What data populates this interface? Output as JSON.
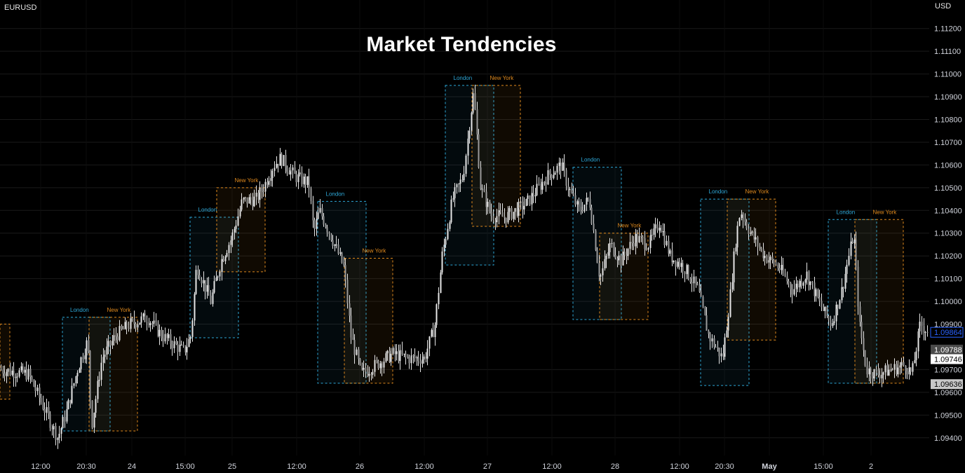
{
  "header": {
    "symbol": "EURUSD",
    "currency": "USD"
  },
  "title": "Market Tendencies",
  "colors": {
    "background": "#000000",
    "candle": "#e6e6e6",
    "london": "#2ea8d8",
    "new_york": "#e08a1e",
    "grid": "#1a1a1a",
    "axis_text": "#d1d4dc",
    "last_price": "#2962ff"
  },
  "chart_data": {
    "type": "candlestick",
    "title": "Market Tendencies",
    "symbol": "EURUSD",
    "y_axis_unit": "USD",
    "ylim": [
      1.0935,
      1.1133
    ],
    "y_ticks": [
      "1.11200",
      "1.11100",
      "1.11000",
      "1.10900",
      "1.10800",
      "1.10700",
      "1.10600",
      "1.10500",
      "1.10400",
      "1.10300",
      "1.10200",
      "1.10100",
      "1.10000",
      "1.09900",
      "1.09700",
      "1.09600",
      "1.09500",
      "1.09400"
    ],
    "x_ticks": [
      "12:00",
      "20:30",
      "24",
      "15:00",
      "25",
      "12:00",
      "26",
      "12:00",
      "27",
      "12:00",
      "28",
      "12:00",
      "20:30",
      "May",
      "15:00",
      "2"
    ],
    "price_labels": [
      {
        "value": "1.09864",
        "style": "last"
      },
      {
        "value": "1.09788",
        "style": "dark"
      },
      {
        "value": "1.09746",
        "style": "white"
      },
      {
        "value": "1.09636",
        "style": "light"
      }
    ],
    "grid": true,
    "price_path": [
      [
        0,
        1.097
      ],
      [
        40,
        1.0968
      ],
      [
        82,
        1.094
      ],
      [
        95,
        1.0952
      ],
      [
        110,
        1.097
      ],
      [
        125,
        1.0983
      ],
      [
        130,
        1.0945
      ],
      [
        145,
        1.0975
      ],
      [
        165,
        1.0985
      ],
      [
        185,
        1.099
      ],
      [
        210,
        1.0993
      ],
      [
        230,
        1.0985
      ],
      [
        262,
        1.0978
      ],
      [
        272,
        1.0985
      ],
      [
        280,
        1.1016
      ],
      [
        300,
        1.1
      ],
      [
        315,
        1.1018
      ],
      [
        330,
        1.1028
      ],
      [
        345,
        1.1044
      ],
      [
        365,
        1.1045
      ],
      [
        375,
        1.105
      ],
      [
        390,
        1.106
      ],
      [
        400,
        1.1063
      ],
      [
        420,
        1.1055
      ],
      [
        440,
        1.1052
      ],
      [
        447,
        1.103
      ],
      [
        455,
        1.104
      ],
      [
        470,
        1.103
      ],
      [
        490,
        1.1015
      ],
      [
        500,
        1.0985
      ],
      [
        515,
        1.0968
      ],
      [
        540,
        1.0973
      ],
      [
        560,
        1.0977
      ],
      [
        580,
        1.0975
      ],
      [
        605,
        1.0975
      ],
      [
        620,
        1.099
      ],
      [
        630,
        1.102
      ],
      [
        645,
        1.1045
      ],
      [
        660,
        1.1055
      ],
      [
        672,
        1.1085
      ],
      [
        675,
        1.1092
      ],
      [
        685,
        1.105
      ],
      [
        700,
        1.1038
      ],
      [
        720,
        1.1037
      ],
      [
        750,
        1.1043
      ],
      [
        780,
        1.1055
      ],
      [
        800,
        1.106
      ],
      [
        810,
        1.105
      ],
      [
        825,
        1.104
      ],
      [
        840,
        1.1045
      ],
      [
        855,
        1.101
      ],
      [
        870,
        1.1025
      ],
      [
        885,
        1.1018
      ],
      [
        905,
        1.1028
      ],
      [
        925,
        1.1025
      ],
      [
        940,
        1.1035
      ],
      [
        955,
        1.102
      ],
      [
        975,
        1.1015
      ],
      [
        995,
        1.1005
      ],
      [
        1010,
        1.0985
      ],
      [
        1030,
        1.0975
      ],
      [
        1040,
        1.1
      ],
      [
        1048,
        1.1025
      ],
      [
        1055,
        1.104
      ],
      [
        1070,
        1.103
      ],
      [
        1090,
        1.102
      ],
      [
        1110,
        1.1015
      ],
      [
        1130,
        1.1005
      ],
      [
        1150,
        1.1012
      ],
      [
        1170,
        1.0998
      ],
      [
        1185,
        1.099
      ],
      [
        1200,
        1.1005
      ],
      [
        1210,
        1.102
      ],
      [
        1217,
        1.103
      ],
      [
        1225,
        1.099
      ],
      [
        1235,
        1.097
      ],
      [
        1250,
        1.0968
      ],
      [
        1270,
        1.097
      ],
      [
        1290,
        1.0972
      ],
      [
        1300,
        1.0968
      ],
      [
        1312,
        1.099
      ],
      [
        1325,
        1.0986
      ]
    ],
    "sessions": [
      {
        "label": "",
        "type": "new_york",
        "x0": 0,
        "x1": 14,
        "high": 1.099,
        "low": 1.0957
      },
      {
        "label": "London",
        "type": "london",
        "x0": 89,
        "x1": 157,
        "high": 1.0993,
        "low": 1.0943
      },
      {
        "label": "New York",
        "type": "new_york",
        "x0": 127,
        "x1": 196,
        "high": 1.0993,
        "low": 1.0943
      },
      {
        "label": "London",
        "type": "london",
        "x0": 271,
        "x1": 340,
        "high": 1.1037,
        "low": 1.0984
      },
      {
        "label": "New York",
        "type": "new_york",
        "x0": 309,
        "x1": 378,
        "high": 1.105,
        "low": 1.1013
      },
      {
        "label": "London",
        "type": "london",
        "x0": 453,
        "x1": 522,
        "high": 1.1044,
        "low": 1.0964
      },
      {
        "label": "New York",
        "type": "new_york",
        "x0": 491,
        "x1": 560,
        "high": 1.1019,
        "low": 1.0964
      },
      {
        "label": "London",
        "type": "london",
        "x0": 635,
        "x1": 704,
        "high": 1.1095,
        "low": 1.1016
      },
      {
        "label": "New York",
        "type": "new_york",
        "x0": 673,
        "x1": 742,
        "high": 1.1095,
        "low": 1.1033
      },
      {
        "label": "London",
        "type": "london",
        "x0": 817,
        "x1": 886,
        "high": 1.1059,
        "low": 1.0992
      },
      {
        "label": "New York",
        "type": "new_york",
        "x0": 855,
        "x1": 924,
        "high": 1.103,
        "low": 1.0992
      },
      {
        "label": "London",
        "type": "london",
        "x0": 999,
        "x1": 1068,
        "high": 1.1045,
        "low": 1.0963
      },
      {
        "label": "New York",
        "type": "new_york",
        "x0": 1037,
        "x1": 1106,
        "high": 1.1045,
        "low": 1.0983
      },
      {
        "label": "London",
        "type": "london",
        "x0": 1181,
        "x1": 1250,
        "high": 1.1036,
        "low": 1.0964
      },
      {
        "label": "New York",
        "type": "new_york",
        "x0": 1219,
        "x1": 1288,
        "high": 1.1036,
        "low": 1.0964
      }
    ]
  }
}
